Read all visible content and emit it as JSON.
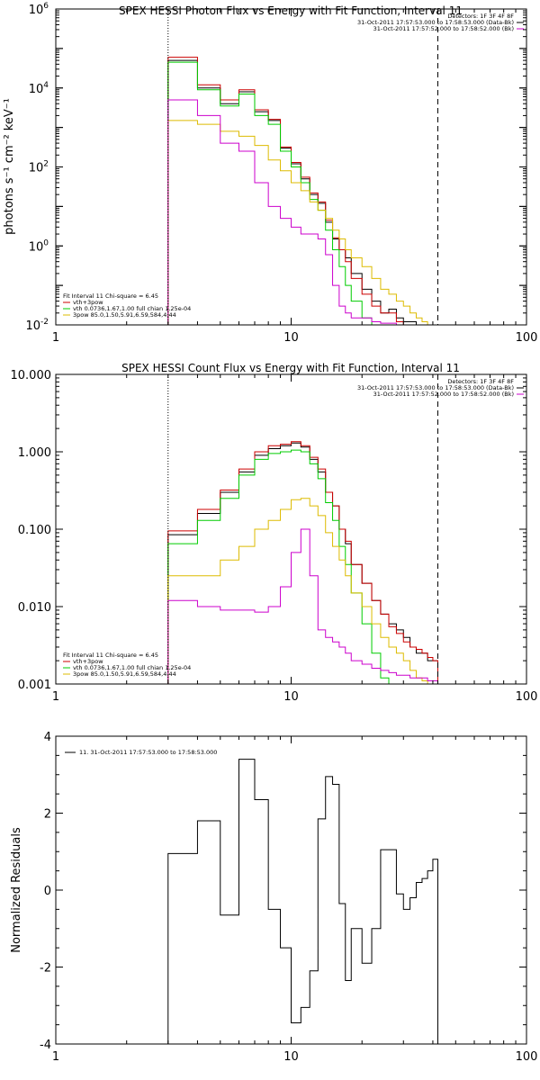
{
  "chart_data": [
    {
      "type": "line",
      "title": "SPEX HESSI Photon Flux vs Energy with Fit Function, Interval 11",
      "ylabel": "photons s⁻¹ cm⁻² keV⁻¹",
      "xlabel": "",
      "xscale": "log",
      "yscale": "log",
      "xlim": [
        1,
        100
      ],
      "ylim": [
        0.01,
        1000000
      ],
      "xticks": [
        {
          "v": 1,
          "label": "1"
        },
        {
          "v": 10,
          "label": "10"
        },
        {
          "v": 100,
          "label": "100"
        }
      ],
      "yticks": [
        {
          "v": 0.01,
          "base": "10",
          "exp": "-2"
        },
        {
          "v": 1,
          "base": "10",
          "exp": "0"
        },
        {
          "v": 100,
          "base": "10",
          "exp": "2"
        },
        {
          "v": 10000,
          "base": "10",
          "exp": "4"
        },
        {
          "v": 1000000,
          "base": "10",
          "exp": "6"
        }
      ],
      "vlines": [
        {
          "x": 3,
          "style": "dotted"
        },
        {
          "x": 42,
          "style": "dashed"
        }
      ],
      "legend_right": {
        "position": "top-right",
        "lines": [
          {
            "text": "Detectors: 1F 3F 4F 8F",
            "color": null
          },
          {
            "text": "31-Oct-2011 17:57:53.000 to 17:58:53.000 (Data-Bk)",
            "color": "#000000"
          },
          {
            "text": "31-Oct-2011 17:57:52.000 to 17:58:52.000 (Bk)",
            "color": "#cc00cc"
          }
        ]
      },
      "legend_left": {
        "position": "bottom-left",
        "lines": [
          {
            "text": "Fit Interval 11   Chi-square = 6.45",
            "color": null
          },
          {
            "text": "vth+3pow",
            "color": "#cc0000"
          },
          {
            "text": "vth 0.0736,1.67,1.00  full chian 1.25e-04",
            "color": "#00cc00"
          },
          {
            "text": "3pow 85.0,1.50,5.91,6.59,584,4.44",
            "color": "#ddbb00"
          }
        ]
      },
      "bin_edges": [
        3,
        3.5,
        4,
        4.5,
        5,
        6,
        7,
        8,
        9,
        10,
        11,
        12,
        13,
        14,
        15,
        16,
        17,
        18,
        20,
        22,
        24,
        26,
        28,
        30,
        32,
        34,
        36,
        38,
        40,
        42
      ],
      "series": [
        {
          "name": "Data-Bk",
          "color": "#000000",
          "values": [
            50000,
            50000,
            10000,
            10000,
            4000,
            8000,
            2500,
            1500,
            300,
            120,
            50,
            20,
            12,
            4,
            1.5,
            0.8,
            0.5,
            0.2,
            0.08,
            0.04,
            0.02,
            0.025,
            0.015,
            0.012,
            0.012,
            0.01,
            0.01,
            0.01,
            0.01
          ]
        },
        {
          "name": "vth+3pow",
          "color": "#cc0000",
          "values": [
            60000,
            60000,
            12000,
            12000,
            5000,
            9000,
            2800,
            1600,
            320,
            130,
            55,
            22,
            13,
            4.5,
            1.6,
            0.8,
            0.4,
            0.15,
            0.06,
            0.03,
            0.02,
            0.02,
            0.012,
            0.01,
            0.01,
            0.01,
            0.01,
            0.01,
            0.01
          ]
        },
        {
          "name": "vth",
          "color": "#00cc00",
          "values": [
            45000,
            45000,
            9000,
            9000,
            3500,
            7000,
            2000,
            1200,
            250,
            100,
            40,
            15,
            8,
            2.5,
            0.8,
            0.3,
            0.1,
            0.04,
            0.015,
            0.01,
            0.01,
            0.01,
            0.01,
            0.01,
            0.01,
            0.01,
            0.01,
            0.01,
            0.01
          ]
        },
        {
          "name": "3pow",
          "color": "#ddbb00",
          "values": [
            1500,
            1500,
            1200,
            1200,
            800,
            600,
            350,
            150,
            80,
            40,
            25,
            13,
            8,
            5,
            2.5,
            1.5,
            0.8,
            0.5,
            0.3,
            0.15,
            0.08,
            0.06,
            0.04,
            0.03,
            0.02,
            0.015,
            0.012,
            0.01,
            0.01
          ]
        },
        {
          "name": "Bk",
          "color": "#cc00cc",
          "values": [
            5000,
            5000,
            2000,
            2000,
            400,
            250,
            40,
            10,
            5,
            3,
            2,
            2,
            1.5,
            0.6,
            0.1,
            0.03,
            0.02,
            0.015,
            0.015,
            0.012,
            0.011,
            0.011,
            0.01,
            0.01,
            0.01,
            0.01,
            0.01,
            0.01,
            0.01
          ]
        }
      ]
    },
    {
      "type": "line",
      "title": "SPEX HESSI Count Flux vs Energy with Fit Function, Interval 11",
      "xlabel": "",
      "ylabel": "",
      "xscale": "log",
      "yscale": "log",
      "xlim": [
        1,
        100
      ],
      "ylim": [
        0.001,
        10
      ],
      "xticks": [
        {
          "v": 1,
          "label": "1"
        },
        {
          "v": 10,
          "label": "10"
        },
        {
          "v": 100,
          "label": "100"
        }
      ],
      "yticks": [
        {
          "v": 0.001,
          "label": "0.001"
        },
        {
          "v": 0.01,
          "label": "0.010"
        },
        {
          "v": 0.1,
          "label": "0.100"
        },
        {
          "v": 1,
          "label": "1.000"
        },
        {
          "v": 10,
          "label": "10.000"
        }
      ],
      "vlines": [
        {
          "x": 3,
          "style": "dotted"
        },
        {
          "x": 42,
          "style": "dashed"
        }
      ],
      "legend_right": {
        "position": "top-right",
        "lines": [
          {
            "text": "Detectors: 1F 3F 4F 8F",
            "color": null
          },
          {
            "text": "31-Oct-2011 17:57:53.000 to 17:58:53.000 (Data-Bk)",
            "color": "#000000"
          },
          {
            "text": "31-Oct-2011 17:57:52.000 to 17:58:52.000 (Bk)",
            "color": "#cc00cc"
          }
        ]
      },
      "legend_left": {
        "position": "bottom-left",
        "lines": [
          {
            "text": "Fit Interval 11   Chi-square = 6.45",
            "color": null
          },
          {
            "text": "vth+3pow",
            "color": "#cc0000"
          },
          {
            "text": "vth 0.0736,1.67,1.00  full chian 1.25e-04",
            "color": "#00cc00"
          },
          {
            "text": "3pow 85.0,1.50,5.91,6.59,584,4.44",
            "color": "#ddbb00"
          }
        ]
      },
      "bin_edges": [
        3,
        3.5,
        4,
        4.5,
        5,
        6,
        7,
        8,
        9,
        10,
        11,
        12,
        13,
        14,
        15,
        16,
        17,
        18,
        20,
        22,
        24,
        26,
        28,
        30,
        32,
        34,
        36,
        38,
        40,
        42
      ],
      "series": [
        {
          "name": "Data-Bk",
          "color": "#000000",
          "values": [
            0.085,
            0.085,
            0.16,
            0.16,
            0.3,
            0.55,
            0.9,
            1.1,
            1.2,
            1.3,
            1.15,
            0.8,
            0.55,
            0.3,
            0.2,
            0.1,
            0.065,
            0.035,
            0.02,
            0.012,
            0.008,
            0.006,
            0.005,
            0.004,
            0.003,
            0.0025,
            0.0025,
            0.002,
            0.002
          ]
        },
        {
          "name": "vth+3pow",
          "color": "#cc0000",
          "values": [
            0.095,
            0.095,
            0.18,
            0.18,
            0.32,
            0.6,
            1.0,
            1.2,
            1.25,
            1.35,
            1.2,
            0.85,
            0.6,
            0.3,
            0.2,
            0.1,
            0.07,
            0.035,
            0.02,
            0.012,
            0.008,
            0.0055,
            0.0045,
            0.0035,
            0.003,
            0.0028,
            0.0025,
            0.0022,
            0.002
          ]
        },
        {
          "name": "vth",
          "color": "#00cc00",
          "values": [
            0.065,
            0.065,
            0.13,
            0.13,
            0.25,
            0.5,
            0.8,
            0.95,
            1.0,
            1.05,
            1.0,
            0.7,
            0.45,
            0.22,
            0.13,
            0.06,
            0.035,
            0.015,
            0.006,
            0.0025,
            0.0012,
            0.0009,
            0.0009,
            0.0009,
            0.0009,
            0.0009,
            0.0009,
            0.0009,
            0.0009
          ]
        },
        {
          "name": "3pow",
          "color": "#ddbb00",
          "values": [
            0.025,
            0.025,
            0.025,
            0.025,
            0.04,
            0.06,
            0.1,
            0.13,
            0.18,
            0.24,
            0.25,
            0.2,
            0.15,
            0.09,
            0.06,
            0.04,
            0.025,
            0.015,
            0.01,
            0.006,
            0.004,
            0.003,
            0.0025,
            0.002,
            0.0015,
            0.0012,
            0.0011,
            0.001,
            0.001
          ]
        },
        {
          "name": "Bk",
          "color": "#cc00cc",
          "values": [
            0.012,
            0.012,
            0.01,
            0.01,
            0.009,
            0.009,
            0.0085,
            0.01,
            0.018,
            0.05,
            0.1,
            0.025,
            0.005,
            0.004,
            0.0035,
            0.003,
            0.0025,
            0.002,
            0.0018,
            0.0016,
            0.0015,
            0.0014,
            0.0013,
            0.0013,
            0.0012,
            0.0012,
            0.0012,
            0.0011,
            0.0011
          ]
        }
      ]
    },
    {
      "type": "line",
      "title": "",
      "xlabel": "",
      "ylabel": "Normalized Residuals",
      "xscale": "log",
      "yscale": "linear",
      "xlim": [
        1,
        100
      ],
      "ylim": [
        -4,
        4
      ],
      "xticks": [
        {
          "v": 1,
          "label": "1"
        },
        {
          "v": 10,
          "label": "10"
        },
        {
          "v": 100,
          "label": "100"
        }
      ],
      "yticks": [
        {
          "v": -4,
          "label": "-4"
        },
        {
          "v": -2,
          "label": "-2"
        },
        {
          "v": 0,
          "label": "0"
        },
        {
          "v": 2,
          "label": "2"
        },
        {
          "v": 4,
          "label": "4"
        }
      ],
      "legend": {
        "position": "top-left",
        "text": "11. 31-Oct-2011 17:57:53.000 to 17:58:53.000",
        "color": "#000000"
      },
      "bin_edges": [
        3,
        4,
        5,
        6,
        7,
        8,
        9,
        10,
        11,
        12,
        13,
        14,
        15,
        16,
        17,
        18,
        20,
        22,
        24,
        26,
        28,
        30,
        32,
        34,
        36,
        38,
        40,
        42
      ],
      "series": [
        {
          "name": "11. 31-Oct-2011 17:57:53.000 to 17:58:53.000",
          "color": "#000000",
          "values": [
            0.95,
            1.8,
            -0.65,
            3.4,
            2.35,
            -0.5,
            -1.5,
            -3.45,
            -3.05,
            -2.1,
            1.85,
            2.95,
            2.75,
            -0.35,
            -2.35,
            -1.0,
            -1.9,
            -1.0,
            1.05,
            1.05,
            -0.1,
            -0.5,
            -0.2,
            0.2,
            0.3,
            0.5,
            0.8
          ]
        }
      ]
    }
  ]
}
